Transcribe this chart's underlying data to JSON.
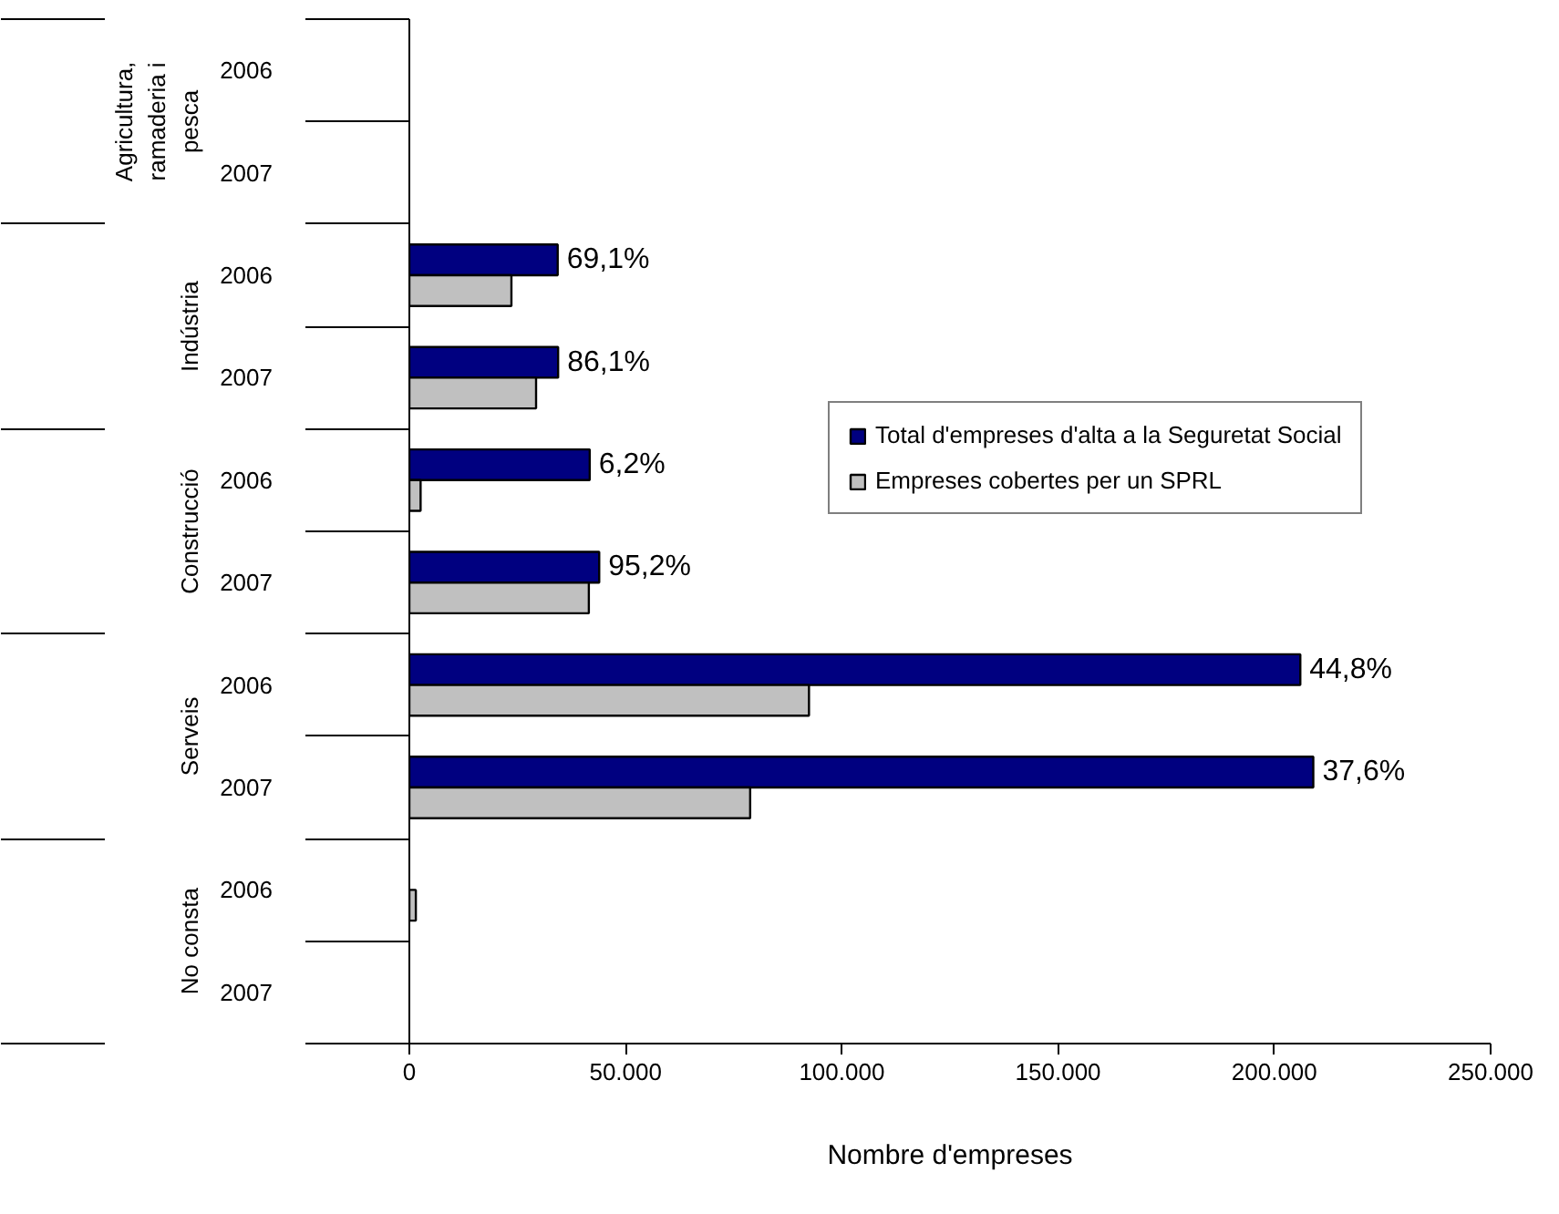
{
  "chart_data": {
    "type": "bar",
    "orientation": "horizontal",
    "xlabel": "Nombre d'empreses",
    "categories": [
      "2006",
      "2007",
      "2006",
      "2007",
      "2006",
      "2007",
      "2006",
      "2007",
      "2006",
      "2007"
    ],
    "annotations": [
      "Agricultura, ramaderia i pesca",
      "Indústria",
      "Construcció",
      "Serveis",
      "No consta",
      {
        "text": "69,1%",
        "x": 34300
      },
      {
        "text": "86,1%",
        "x": 34400
      },
      {
        "text": "6,2%",
        "x": 41700
      },
      {
        "text": "95,2%",
        "x": 43900
      },
      {
        "text": "44,8%",
        "x": 206000
      },
      {
        "text": "37,6%",
        "x": 209000
      }
    ],
    "series": [
      {
        "name": "Total d'empreses d'alta a la Seguretat Social",
        "color": "#000080",
        "values": [
          null,
          null,
          34300,
          34400,
          41700,
          43900,
          206000,
          209000,
          null,
          null
        ]
      },
      {
        "name": "Empreses cobertes per un SPRL",
        "color": "#c0c0c0",
        "values": [
          null,
          null,
          23600,
          29300,
          2600,
          41500,
          92400,
          78800,
          1500,
          null
        ]
      }
    ],
    "xlim": [
      0,
      250000
    ],
    "xticks": [
      {
        "value": 0,
        "label": "0"
      },
      {
        "value": 50000,
        "label": "50.000"
      },
      {
        "value": 100000,
        "label": "100.000"
      },
      {
        "value": 150000,
        "label": "150.000"
      },
      {
        "value": 200000,
        "label": "200.000"
      },
      {
        "value": 250000,
        "label": "250.000"
      }
    ],
    "grid": false,
    "legend": "right"
  }
}
